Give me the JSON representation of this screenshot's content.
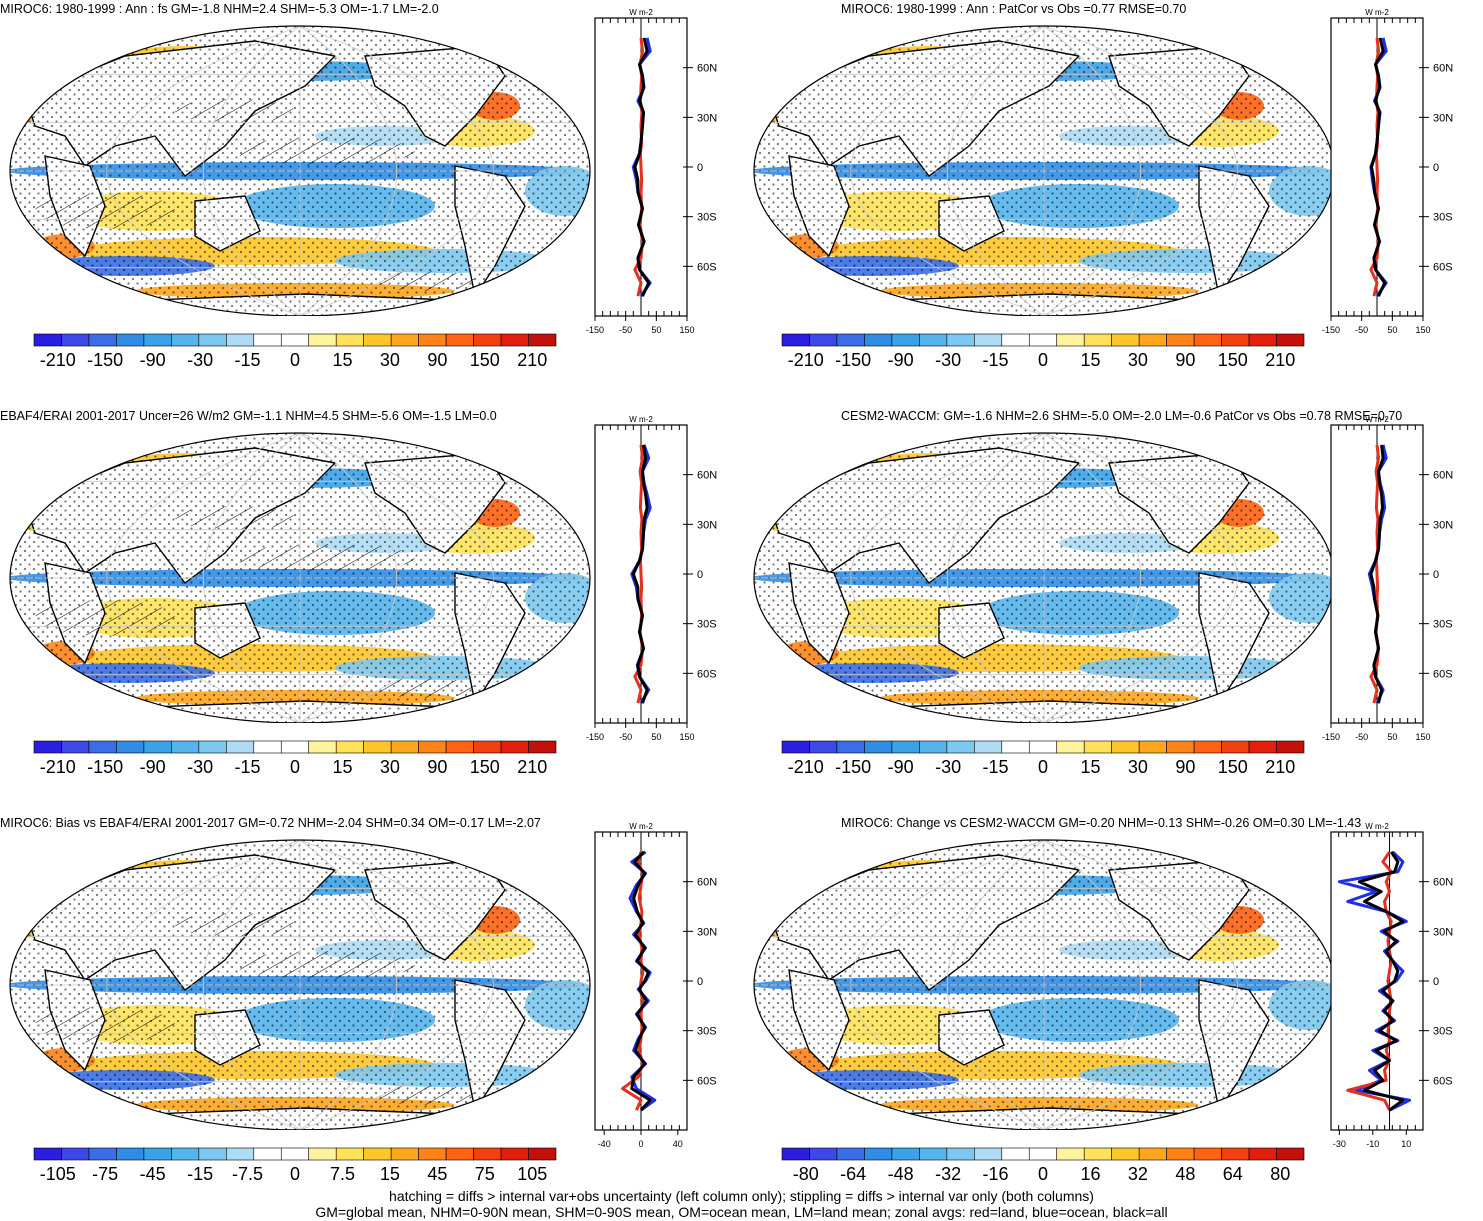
{
  "figure": {
    "footnote_line1": "hatching = diffs > internal var+obs uncertainty (left column only); stippling = diffs > internal var only (both columns)",
    "footnote_line2": "GM=global mean, NHM=0-90N mean, SHM=0-90S mean, OM=ocean mean, LM=land mean; zonal avgs: red=land, blue=ocean, black=all"
  },
  "colors": {
    "land": "#e53020",
    "ocean": "#1f2fe6",
    "all": "#000000",
    "scale": [
      "#2a1fe0",
      "#3c49e6",
      "#3a6ee6",
      "#2f8de6",
      "#3aa2e8",
      "#55b4ec",
      "#7cc8f0",
      "#aedcf5",
      "#ffffff",
      "#ffffff",
      "#fff39b",
      "#ffe25a",
      "#ffc62a",
      "#ffa51e",
      "#ff8318",
      "#ff6212",
      "#f2400f",
      "#e31e0c",
      "#c4100a"
    ]
  },
  "chart_data": [
    {
      "type": "map",
      "title": "MIROC6: 1980-1999 : Ann : fs GM=-1.8 NHM=2.4 SHM=-5.3 OM=-1.7 LM=-2.0",
      "hatching": true,
      "colorbar": {
        "labels": [
          "-210",
          "-150",
          "-90",
          "-30",
          "-15",
          "0",
          "15",
          "30",
          "90",
          "150",
          "210"
        ]
      },
      "zonal": {
        "unit": "W m-2",
        "xlim": [
          -150,
          150
        ],
        "xticks": [
          "-150",
          "-50",
          "50",
          "150"
        ],
        "lat_labels": [
          "60N",
          "30N",
          "0",
          "30S",
          "60S"
        ],
        "lat_values": [
          60,
          30,
          0,
          -30,
          -60
        ],
        "lats": [
          -78,
          -70,
          -62,
          -55,
          -45,
          -35,
          -25,
          -15,
          -8,
          0,
          8,
          15,
          25,
          33,
          40,
          48,
          55,
          62,
          70,
          78
        ],
        "ocean": [
          0,
          30,
          -5,
          -10,
          10,
          -8,
          5,
          -10,
          -15,
          -25,
          -5,
          0,
          5,
          8,
          -10,
          10,
          5,
          -5,
          30,
          20
        ],
        "land": [
          -10,
          0,
          -20,
          0,
          5,
          -3,
          2,
          0,
          2,
          0,
          -2,
          2,
          0,
          3,
          -2,
          0,
          2,
          -3,
          5,
          0
        ],
        "all": [
          5,
          25,
          -5,
          -10,
          10,
          -8,
          5,
          -10,
          -10,
          -20,
          -5,
          0,
          5,
          8,
          -5,
          8,
          5,
          -5,
          20,
          10
        ]
      }
    },
    {
      "type": "map",
      "title": "MIROC6: 1980-1999 : Ann : PatCor vs Obs =0.77 RMSE=0.70",
      "hatching": false,
      "colorbar": {
        "labels": [
          "-210",
          "-150",
          "-90",
          "-30",
          "-15",
          "0",
          "15",
          "30",
          "90",
          "150",
          "210"
        ]
      },
      "zonal": {
        "unit": "W m-2",
        "xlim": [
          -150,
          150
        ],
        "xticks": [
          "-150",
          "-50",
          "50",
          "150"
        ],
        "lat_labels": [
          "60N",
          "30N",
          "0",
          "30S",
          "60S"
        ],
        "lat_values": [
          60,
          30,
          0,
          -30,
          -60
        ],
        "lats": [
          -78,
          -70,
          -62,
          -55,
          -45,
          -35,
          -25,
          -15,
          -8,
          0,
          8,
          15,
          25,
          33,
          40,
          48,
          55,
          62,
          70,
          78
        ],
        "ocean": [
          0,
          30,
          -5,
          -10,
          8,
          -8,
          5,
          -8,
          -15,
          -20,
          -5,
          0,
          5,
          10,
          -8,
          10,
          5,
          -5,
          30,
          20
        ],
        "land": [
          -10,
          0,
          -20,
          0,
          5,
          -3,
          2,
          0,
          2,
          0,
          -2,
          2,
          0,
          3,
          -2,
          0,
          2,
          -3,
          5,
          0
        ],
        "all": [
          5,
          25,
          -5,
          -10,
          8,
          -8,
          5,
          -8,
          -10,
          -18,
          -5,
          0,
          5,
          8,
          -5,
          8,
          5,
          -5,
          20,
          10
        ]
      }
    },
    {
      "type": "map",
      "title": "EBAF4/ERAI 2001-2017 Uncer=26 W/m2 GM=-1.1 NHM=4.5 SHM=-5.6 OM=-1.5 LM=0.0",
      "hatching": true,
      "colorbar": {
        "labels": [
          "-210",
          "-150",
          "-90",
          "-30",
          "-15",
          "0",
          "15",
          "30",
          "90",
          "150",
          "210"
        ]
      },
      "zonal": {
        "unit": "W m-2",
        "xlim": [
          -150,
          150
        ],
        "xticks": [
          "-150",
          "-50",
          "50",
          "150"
        ],
        "lat_labels": [
          "60N",
          "30N",
          "0",
          "30S",
          "60S"
        ],
        "lat_values": [
          60,
          30,
          0,
          -30,
          -60
        ],
        "lats": [
          -78,
          -70,
          -62,
          -55,
          -45,
          -35,
          -25,
          -15,
          -8,
          0,
          8,
          15,
          25,
          33,
          40,
          48,
          55,
          62,
          70,
          78
        ],
        "ocean": [
          0,
          25,
          -5,
          -12,
          8,
          -5,
          5,
          -10,
          -15,
          -30,
          -5,
          5,
          8,
          15,
          30,
          20,
          10,
          5,
          25,
          10
        ],
        "land": [
          -10,
          0,
          -20,
          0,
          5,
          -3,
          2,
          0,
          2,
          0,
          -2,
          2,
          0,
          3,
          -2,
          0,
          2,
          -3,
          5,
          0
        ],
        "all": [
          5,
          20,
          -5,
          -10,
          8,
          -5,
          5,
          -10,
          -10,
          -25,
          -5,
          5,
          8,
          10,
          20,
          15,
          8,
          5,
          15,
          8
        ]
      }
    },
    {
      "type": "map",
      "title": "CESM2-WACCM: GM=-1.6 NHM=2.6 SHM=-5.0 OM=-2.0 LM=-0.6 PatCor vs Obs =0.78 RMSE=0.70",
      "hatching": false,
      "colorbar": {
        "labels": [
          "-210",
          "-150",
          "-90",
          "-30",
          "-15",
          "0",
          "15",
          "30",
          "90",
          "150",
          "210"
        ]
      },
      "zonal": {
        "unit": "W m-2",
        "xlim": [
          -150,
          150
        ],
        "xticks": [
          "-150",
          "-50",
          "50",
          "150"
        ],
        "lat_labels": [
          "60N",
          "30N",
          "0",
          "30S",
          "60S"
        ],
        "lat_values": [
          60,
          30,
          0,
          -30,
          -60
        ],
        "lats": [
          -78,
          -70,
          -62,
          -55,
          -45,
          -35,
          -25,
          -15,
          -8,
          0,
          8,
          15,
          25,
          33,
          40,
          48,
          55,
          62,
          70,
          78
        ],
        "ocean": [
          0,
          20,
          -5,
          -10,
          5,
          -5,
          3,
          -8,
          -15,
          -25,
          -5,
          5,
          8,
          15,
          25,
          20,
          10,
          5,
          30,
          20
        ],
        "land": [
          -10,
          0,
          -20,
          0,
          5,
          -3,
          2,
          0,
          2,
          0,
          -2,
          2,
          0,
          3,
          -2,
          0,
          2,
          -3,
          5,
          0
        ],
        "all": [
          5,
          15,
          -5,
          -10,
          5,
          -5,
          3,
          -8,
          -10,
          -20,
          -5,
          5,
          8,
          10,
          18,
          15,
          8,
          5,
          20,
          15
        ]
      }
    },
    {
      "type": "map",
      "title": "MIROC6: Bias vs EBAF4/ERAI 2001-2017 GM=-0.72 NHM=-2.04 SHM=0.34 OM=-0.17 LM=-2.07",
      "hatching": true,
      "colorbar": {
        "labels": [
          "-105",
          "-75",
          "-45",
          "-15",
          "-7.5",
          "0",
          "7.5",
          "15",
          "45",
          "75",
          "105"
        ]
      },
      "zonal": {
        "unit": "W m-2",
        "xlim": [
          -50,
          50
        ],
        "xticks": [
          "-40",
          "0",
          "40"
        ],
        "lat_labels": [
          "60N",
          "30N",
          "0",
          "30S",
          "60S"
        ],
        "lat_values": [
          60,
          30,
          0,
          -30,
          -60
        ],
        "lats": [
          -78,
          -72,
          -65,
          -58,
          -50,
          -42,
          -35,
          -28,
          -20,
          -12,
          -5,
          0,
          5,
          12,
          20,
          28,
          35,
          42,
          50,
          58,
          65,
          72,
          78
        ],
        "ocean": [
          0,
          15,
          -5,
          -10,
          5,
          -8,
          -3,
          5,
          -5,
          8,
          -3,
          5,
          10,
          -5,
          5,
          -8,
          3,
          -5,
          -12,
          -5,
          5,
          -10,
          5
        ],
        "land": [
          -5,
          0,
          -20,
          -3,
          2,
          -2,
          0,
          1,
          0,
          2,
          -1,
          0,
          2,
          0,
          1,
          -2,
          0,
          1,
          -2,
          0,
          2,
          -3,
          0
        ],
        "all": [
          0,
          10,
          -10,
          -8,
          4,
          -6,
          -2,
          4,
          -4,
          6,
          -2,
          4,
          8,
          -4,
          4,
          -6,
          2,
          -4,
          -8,
          -3,
          4,
          -7,
          3
        ]
      }
    },
    {
      "type": "map",
      "title": "MIROC6: Change vs CESM2-WACCM GM=-0.20 NHM=-0.13 SHM=-0.26 OM=0.30 LM=-1.43",
      "hatching": false,
      "colorbar": {
        "labels": [
          "-80",
          "-64",
          "-48",
          "-32",
          "-16",
          "0",
          "16",
          "32",
          "48",
          "64",
          "80"
        ]
      },
      "zonal": {
        "unit": "W m-2",
        "xlim": [
          -35,
          20
        ],
        "xticks": [
          "-30",
          "-10",
          "10"
        ],
        "lat_labels": [
          "60N",
          "30N",
          "0",
          "30S",
          "60S"
        ],
        "lat_values": [
          60,
          30,
          0,
          -30,
          -60
        ],
        "lats": [
          -78,
          -72,
          -66,
          -60,
          -54,
          -48,
          -42,
          -36,
          -30,
          -24,
          -18,
          -12,
          -6,
          0,
          6,
          12,
          18,
          24,
          30,
          36,
          42,
          48,
          54,
          60,
          66,
          72,
          78
        ],
        "ocean": [
          0,
          12,
          -20,
          -5,
          -12,
          0,
          -10,
          5,
          -8,
          3,
          -4,
          2,
          -6,
          4,
          8,
          2,
          -3,
          5,
          -5,
          10,
          -2,
          -25,
          -8,
          -30,
          5,
          8,
          2
        ],
        "land": [
          0,
          -3,
          -25,
          -2,
          -3,
          0,
          -2,
          0,
          -1,
          0,
          0,
          1,
          0,
          -1,
          0,
          1,
          0,
          -1,
          0,
          1,
          -2,
          -3,
          0,
          -2,
          1,
          -4,
          0
        ],
        "all": [
          0,
          8,
          -15,
          -4,
          -9,
          0,
          -8,
          4,
          -6,
          2,
          -3,
          2,
          -4,
          3,
          5,
          2,
          -2,
          4,
          -3,
          8,
          -2,
          -15,
          -5,
          -18,
          3,
          5,
          1
        ]
      }
    }
  ]
}
